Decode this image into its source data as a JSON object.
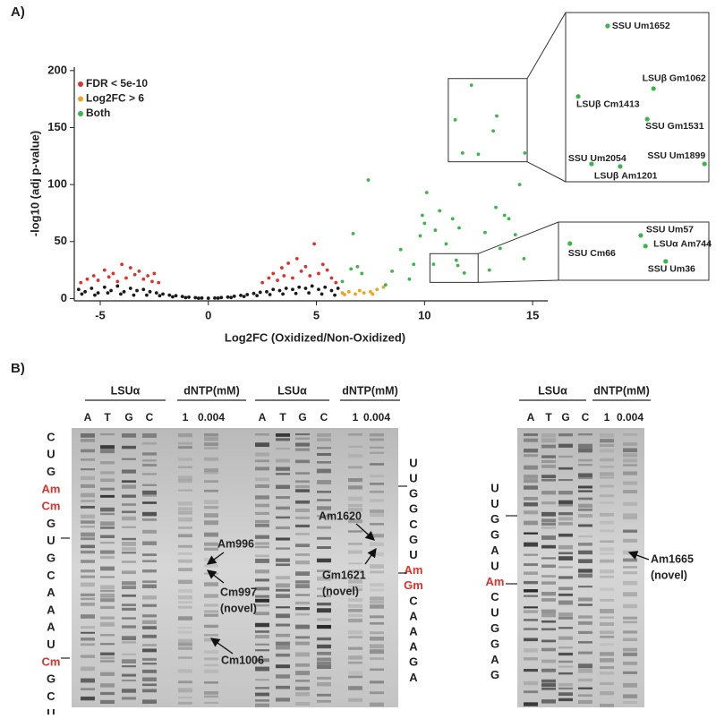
{
  "panel_labels": [
    "A)",
    "B)"
  ],
  "chart_data": {
    "type": "scatter",
    "xlabel": "Log2FC (Oxidized/Non-Oxidized)",
    "ylabel": "-log10 (adj p-value)",
    "xlim": [
      -6.2,
      15.7
    ],
    "ylim": [
      -2,
      203
    ],
    "xticks": [
      -5,
      0,
      5,
      10,
      15
    ],
    "yticks": [
      0,
      50,
      100,
      150,
      200
    ],
    "legend": "upper left",
    "series": [
      {
        "color": "#1a1a1a",
        "x": [
          -6,
          -5.7,
          -5.4,
          -5.1,
          -4.8,
          -4.5,
          -4.2,
          -3.9,
          -3.6,
          -3.3,
          -3,
          -2.7,
          -2.4,
          -2.1,
          -1.8,
          -1.5,
          -1.2,
          -0.9,
          -0.6,
          -0.3,
          0,
          0.3,
          0.6,
          0.9,
          1.2,
          1.5,
          1.8,
          2.1,
          2.4,
          2.7,
          3,
          3.3,
          3.6,
          3.9,
          4.2,
          4.5,
          4.8,
          5.1,
          5.4,
          5.7,
          6,
          -5.85,
          -5.25,
          -4.65,
          -4.05,
          -3.45,
          -2.85,
          -2.25,
          -1.65,
          -1.05,
          -0.45,
          0.45,
          1.05,
          1.65,
          2.25,
          2.85,
          3.45,
          4.05,
          4.65,
          5.25,
          5.85
        ],
        "y": [
          8,
          6,
          9,
          5,
          10,
          7,
          11,
          6,
          9,
          7,
          8,
          6,
          5,
          4,
          3,
          2.5,
          1.8,
          1.2,
          0.8,
          0.5,
          0.3,
          0.5,
          0.9,
          1.3,
          2,
          2.8,
          3.5,
          4.5,
          5.5,
          6,
          8,
          7,
          9,
          8,
          10,
          9,
          11,
          8,
          10,
          7,
          9,
          4,
          3,
          5,
          4,
          3,
          3,
          2.5,
          1.5,
          0.8,
          0.3,
          0.4,
          0.9,
          1.8,
          2.6,
          3.5,
          4,
          4.5,
          5,
          4,
          3
        ]
      },
      {
        "name": "FDR < 5e-10",
        "color": "#e0302b",
        "x": [
          -5.9,
          -5.6,
          -5.3,
          -5.1,
          -4.8,
          -4.6,
          -4.4,
          -4.2,
          -4,
          -3.8,
          -3.6,
          -3.4,
          -3.2,
          -3,
          -2.8,
          -2.6,
          -2.5,
          -2.3,
          2.5,
          2.8,
          3,
          3.2,
          3.4,
          3.5,
          3.7,
          3.9,
          4.1,
          4.3,
          4.5,
          4.7,
          4.9,
          5.1,
          5.3,
          5.5,
          5.7,
          5.9
        ],
        "y": [
          14,
          17,
          20,
          16,
          25,
          19,
          22,
          15,
          30,
          18,
          27,
          21,
          24,
          17,
          20,
          15,
          22,
          14,
          14,
          18,
          22,
          16,
          27,
          20,
          31,
          18,
          35,
          24,
          28,
          20,
          48,
          22,
          30,
          25,
          18,
          14
        ]
      },
      {
        "name": "Log2FC > 6",
        "color": "#f2a31b",
        "x": [
          6.2,
          6.3,
          6.5,
          6.8,
          7,
          7.2,
          7.5,
          7.6,
          7.8,
          8.1
        ],
        "y": [
          5,
          3.5,
          6,
          4,
          7,
          5,
          6,
          4,
          8,
          10
        ]
      },
      {
        "name": "Both",
        "color": "#3cb54a",
        "x": [
          6.2,
          6.6,
          6.9,
          7.1,
          7.4,
          6.7,
          8.2,
          8.5,
          8.9,
          9.3,
          9.5,
          9.8,
          9.9,
          10,
          10.1,
          10.5,
          10.7,
          11,
          11.3,
          11.6,
          12.8,
          13,
          13.3,
          13.5,
          13.7,
          13.9,
          14.2,
          14.4,
          14.6
        ],
        "y": [
          15,
          26,
          28,
          22,
          104,
          57,
          12,
          24,
          43,
          17,
          30,
          55,
          73,
          66,
          93,
          60,
          77,
          48,
          70,
          62,
          58,
          25,
          80,
          44,
          73,
          70,
          56,
          100,
          35
        ]
      }
    ],
    "insets": [
      {
        "xlim": [
          11.1,
          14.75
        ],
        "ylim": [
          120,
          193
        ],
        "points": [
          {
            "label": "SSU Um1652",
            "x": 12.17,
            "y": 187.2
          },
          {
            "label": "LSUβ Gm1062",
            "x": 13.34,
            "y": 160.2
          },
          {
            "label": "LSUβ Cm1413",
            "x": 11.42,
            "y": 156.8
          },
          {
            "label": "SSU Gm1531",
            "x": 13.18,
            "y": 147
          },
          {
            "label": "SSU Um2054",
            "x": 11.76,
            "y": 127.7
          },
          {
            "label": "LSUβ Am1201",
            "x": 12.49,
            "y": 126.6
          },
          {
            "label": "SSU Um1899",
            "x": 14.64,
            "y": 127.7
          }
        ]
      },
      {
        "xlim": [
          10.25,
          12.48
        ],
        "ylim": [
          14.2,
          39.4
        ],
        "points": [
          {
            "label": "SSU Cm66",
            "x": 10.42,
            "y": 30.1
          },
          {
            "label": "SSU Um57",
            "x": 11.47,
            "y": 33.6
          },
          {
            "label": "LSUα Am744",
            "x": 11.54,
            "y": 29
          },
          {
            "label": "SSU Um36",
            "x": 11.84,
            "y": 22.4
          }
        ]
      }
    ]
  },
  "panel_b": {
    "modified_color": "#e0302b",
    "gels": [
      {
        "groups": [
          {
            "header": "LSUα",
            "lanes": [
              "A",
              "T",
              "G",
              "C"
            ]
          },
          {
            "header": "dNTP(mM)",
            "lanes": [
              "1",
              "0.004"
            ]
          },
          {
            "header": "LSUα",
            "lanes": [
              "A",
              "T",
              "G",
              "C"
            ]
          },
          {
            "header": "dNTP(mM)",
            "lanes": [
              "1",
              "0.004"
            ]
          }
        ],
        "sequences": [
          {
            "residues": [
              {
                "base": "C"
              },
              {
                "base": "U"
              },
              {
                "base": "G"
              },
              {
                "base": "Am",
                "modified": true
              },
              {
                "base": "Cm",
                "modified": true
              },
              {
                "base": "G"
              },
              {
                "base": "U"
              },
              {
                "base": "G"
              },
              {
                "base": "C"
              },
              {
                "base": "A"
              },
              {
                "base": "A"
              },
              {
                "base": "A"
              },
              {
                "base": "U"
              },
              {
                "base": "Cm",
                "modified": true
              },
              {
                "base": "G"
              },
              {
                "base": "C"
              },
              {
                "base": "U"
              }
            ]
          },
          {
            "residues": [
              {
                "base": "U"
              },
              {
                "base": "U"
              },
              {
                "base": "G"
              },
              {
                "base": "G"
              },
              {
                "base": "C"
              },
              {
                "base": "G"
              },
              {
                "base": "U"
              },
              {
                "base": "Am",
                "modified": true
              },
              {
                "base": "Gm",
                "modified": true
              },
              {
                "base": "C"
              },
              {
                "base": "A"
              },
              {
                "base": "A"
              },
              {
                "base": "A"
              },
              {
                "base": "G"
              },
              {
                "base": "A"
              }
            ]
          }
        ],
        "annotations": [
          {
            "lines": [
              "Am996"
            ]
          },
          {
            "lines": [
              "Cm997",
              "(novel)"
            ]
          },
          {
            "lines": [
              "Cm1006"
            ]
          },
          {
            "lines": [
              "Am1620"
            ]
          },
          {
            "lines": [
              "Gm1621",
              "(novel)"
            ]
          }
        ]
      },
      {
        "groups": [
          {
            "header": "LSUα",
            "lanes": [
              "A",
              "T",
              "G",
              "C"
            ]
          },
          {
            "header": "dNTP(mM)",
            "lanes": [
              "1",
              "0.004"
            ]
          }
        ],
        "sequences": [
          {
            "residues": [
              {
                "base": "U"
              },
              {
                "base": "U"
              },
              {
                "base": "G"
              },
              {
                "base": "G"
              },
              {
                "base": "A"
              },
              {
                "base": "U"
              },
              {
                "base": "Am",
                "modified": true
              },
              {
                "base": "C"
              },
              {
                "base": "U"
              },
              {
                "base": "G"
              },
              {
                "base": "G"
              },
              {
                "base": "A"
              },
              {
                "base": "G"
              }
            ]
          }
        ],
        "annotations": [
          {
            "lines": [
              "Am1665",
              "(novel)"
            ]
          }
        ]
      }
    ]
  }
}
